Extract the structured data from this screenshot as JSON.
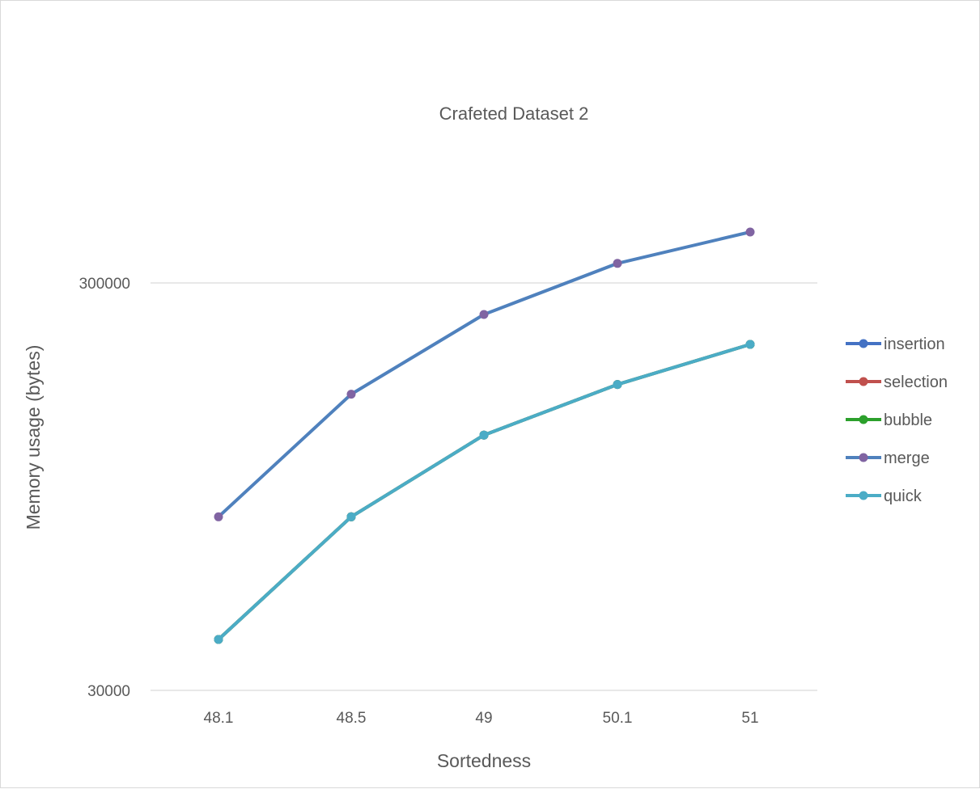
{
  "chart_data": {
    "type": "line",
    "title": "Crafeted Dataset 2",
    "xlabel": "Sortedness",
    "ylabel": "Memory usage (bytes)",
    "yscale": "log",
    "ylim": [
      30000,
      600000
    ],
    "yticks": [
      30000,
      300000
    ],
    "ytick_labels": [
      "30000",
      "300000"
    ],
    "categories": [
      "48.1",
      "48.5",
      "49",
      "50.1",
      "51"
    ],
    "series": [
      {
        "name": "insertion",
        "color": "#4472c4",
        "values": [
          40000,
          80000,
          127000,
          169000,
          212000
        ]
      },
      {
        "name": "selection",
        "color": "#c0504d",
        "values": [
          40000,
          80000,
          127000,
          169000,
          212000
        ]
      },
      {
        "name": "bubble",
        "color": "#2ca02c",
        "values": [
          40000,
          80000,
          127000,
          169000,
          212000
        ]
      },
      {
        "name": "merge",
        "color": "#4f81bd",
        "marker_color": "#8064a2",
        "values": [
          80000,
          160000,
          251000,
          335000,
          400000
        ]
      },
      {
        "name": "quick",
        "color": "#4bacc6",
        "values": [
          40000,
          80000,
          127000,
          169000,
          212000
        ]
      }
    ],
    "legend_position": "right"
  }
}
